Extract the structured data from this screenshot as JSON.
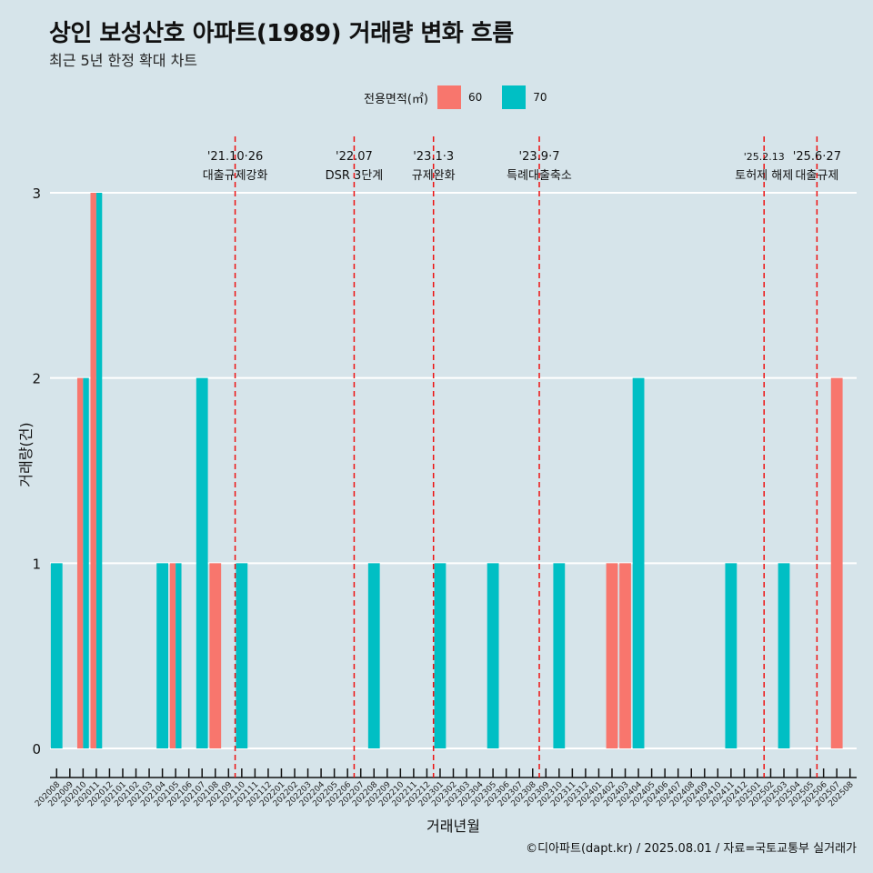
{
  "title": "상인 보성산호 아파트(1989) 거래량 변화 흐름",
  "subtitle": "최근 5년 한정 확대 차트",
  "legend": {
    "title": "전용면적(㎡)",
    "items": [
      {
        "label": "60",
        "color": "#f8766d"
      },
      {
        "label": "70",
        "color": "#00bfc4"
      }
    ]
  },
  "caption": "©디아파트(dapt.kr) / 2025.08.01 / 자료=국토교통부 실거래가",
  "chart_data": {
    "type": "bar",
    "xlabel": "거래년월",
    "ylabel": "거래량(건)",
    "ylim": [
      0,
      3
    ],
    "yticks": [
      0,
      1,
      2,
      3
    ],
    "grid": "horizontal",
    "legend_position": "top",
    "categories": [
      "202008",
      "202009",
      "202010",
      "202011",
      "202012",
      "202101",
      "202102",
      "202103",
      "202104",
      "202105",
      "202106",
      "202107",
      "202108",
      "202109",
      "202110",
      "202111",
      "202112",
      "202201",
      "202202",
      "202203",
      "202204",
      "202205",
      "202206",
      "202207",
      "202208",
      "202209",
      "202210",
      "202211",
      "202212",
      "202301",
      "202302",
      "202303",
      "202304",
      "202305",
      "202306",
      "202307",
      "202308",
      "202309",
      "202310",
      "202311",
      "202312",
      "202401",
      "202402",
      "202403",
      "202404",
      "202405",
      "202406",
      "202407",
      "202408",
      "202409",
      "202410",
      "202411",
      "202412",
      "202501",
      "202502",
      "202503",
      "202504",
      "202505",
      "202506",
      "202507",
      "202508"
    ],
    "series": [
      {
        "name": "60",
        "color": "#f8766d",
        "values": [
          0,
          0,
          2,
          3,
          0,
          0,
          0,
          0,
          0,
          1,
          0,
          0,
          1,
          0,
          0,
          0,
          0,
          0,
          0,
          0,
          0,
          0,
          0,
          0,
          0,
          0,
          0,
          0,
          0,
          0,
          0,
          0,
          0,
          0,
          0,
          0,
          0,
          0,
          0,
          0,
          0,
          0,
          1,
          1,
          0,
          0,
          0,
          0,
          0,
          0,
          0,
          0,
          0,
          0,
          0,
          0,
          0,
          0,
          0,
          2,
          0
        ]
      },
      {
        "name": "70",
        "color": "#00bfc4",
        "values": [
          1,
          0,
          2,
          3,
          0,
          0,
          0,
          0,
          1,
          1,
          0,
          2,
          0,
          0,
          1,
          0,
          0,
          0,
          0,
          0,
          0,
          0,
          0,
          0,
          1,
          0,
          0,
          0,
          0,
          1,
          0,
          0,
          0,
          1,
          0,
          0,
          0,
          0,
          1,
          0,
          0,
          0,
          0,
          0,
          2,
          0,
          0,
          0,
          0,
          0,
          0,
          1,
          0,
          0,
          0,
          1,
          0,
          0,
          0,
          0,
          0
        ]
      }
    ],
    "annotations": [
      {
        "month": "202110",
        "line1": "'21.10·26",
        "line2": "대출규제강화"
      },
      {
        "month": "202207",
        "line1": "'22.07",
        "line2": "DSR 3단계"
      },
      {
        "month": "202301",
        "line1": "'23.1·3",
        "line2": "규제완화"
      },
      {
        "month": "202309",
        "line1": "'23.9·7",
        "line2": "특례대출축소"
      },
      {
        "month": "202502",
        "line1": "'25.2.13",
        "line2": "토허제 해제"
      },
      {
        "month": "202506",
        "line1": "'25.6·27",
        "line2": "대출규제"
      }
    ]
  }
}
